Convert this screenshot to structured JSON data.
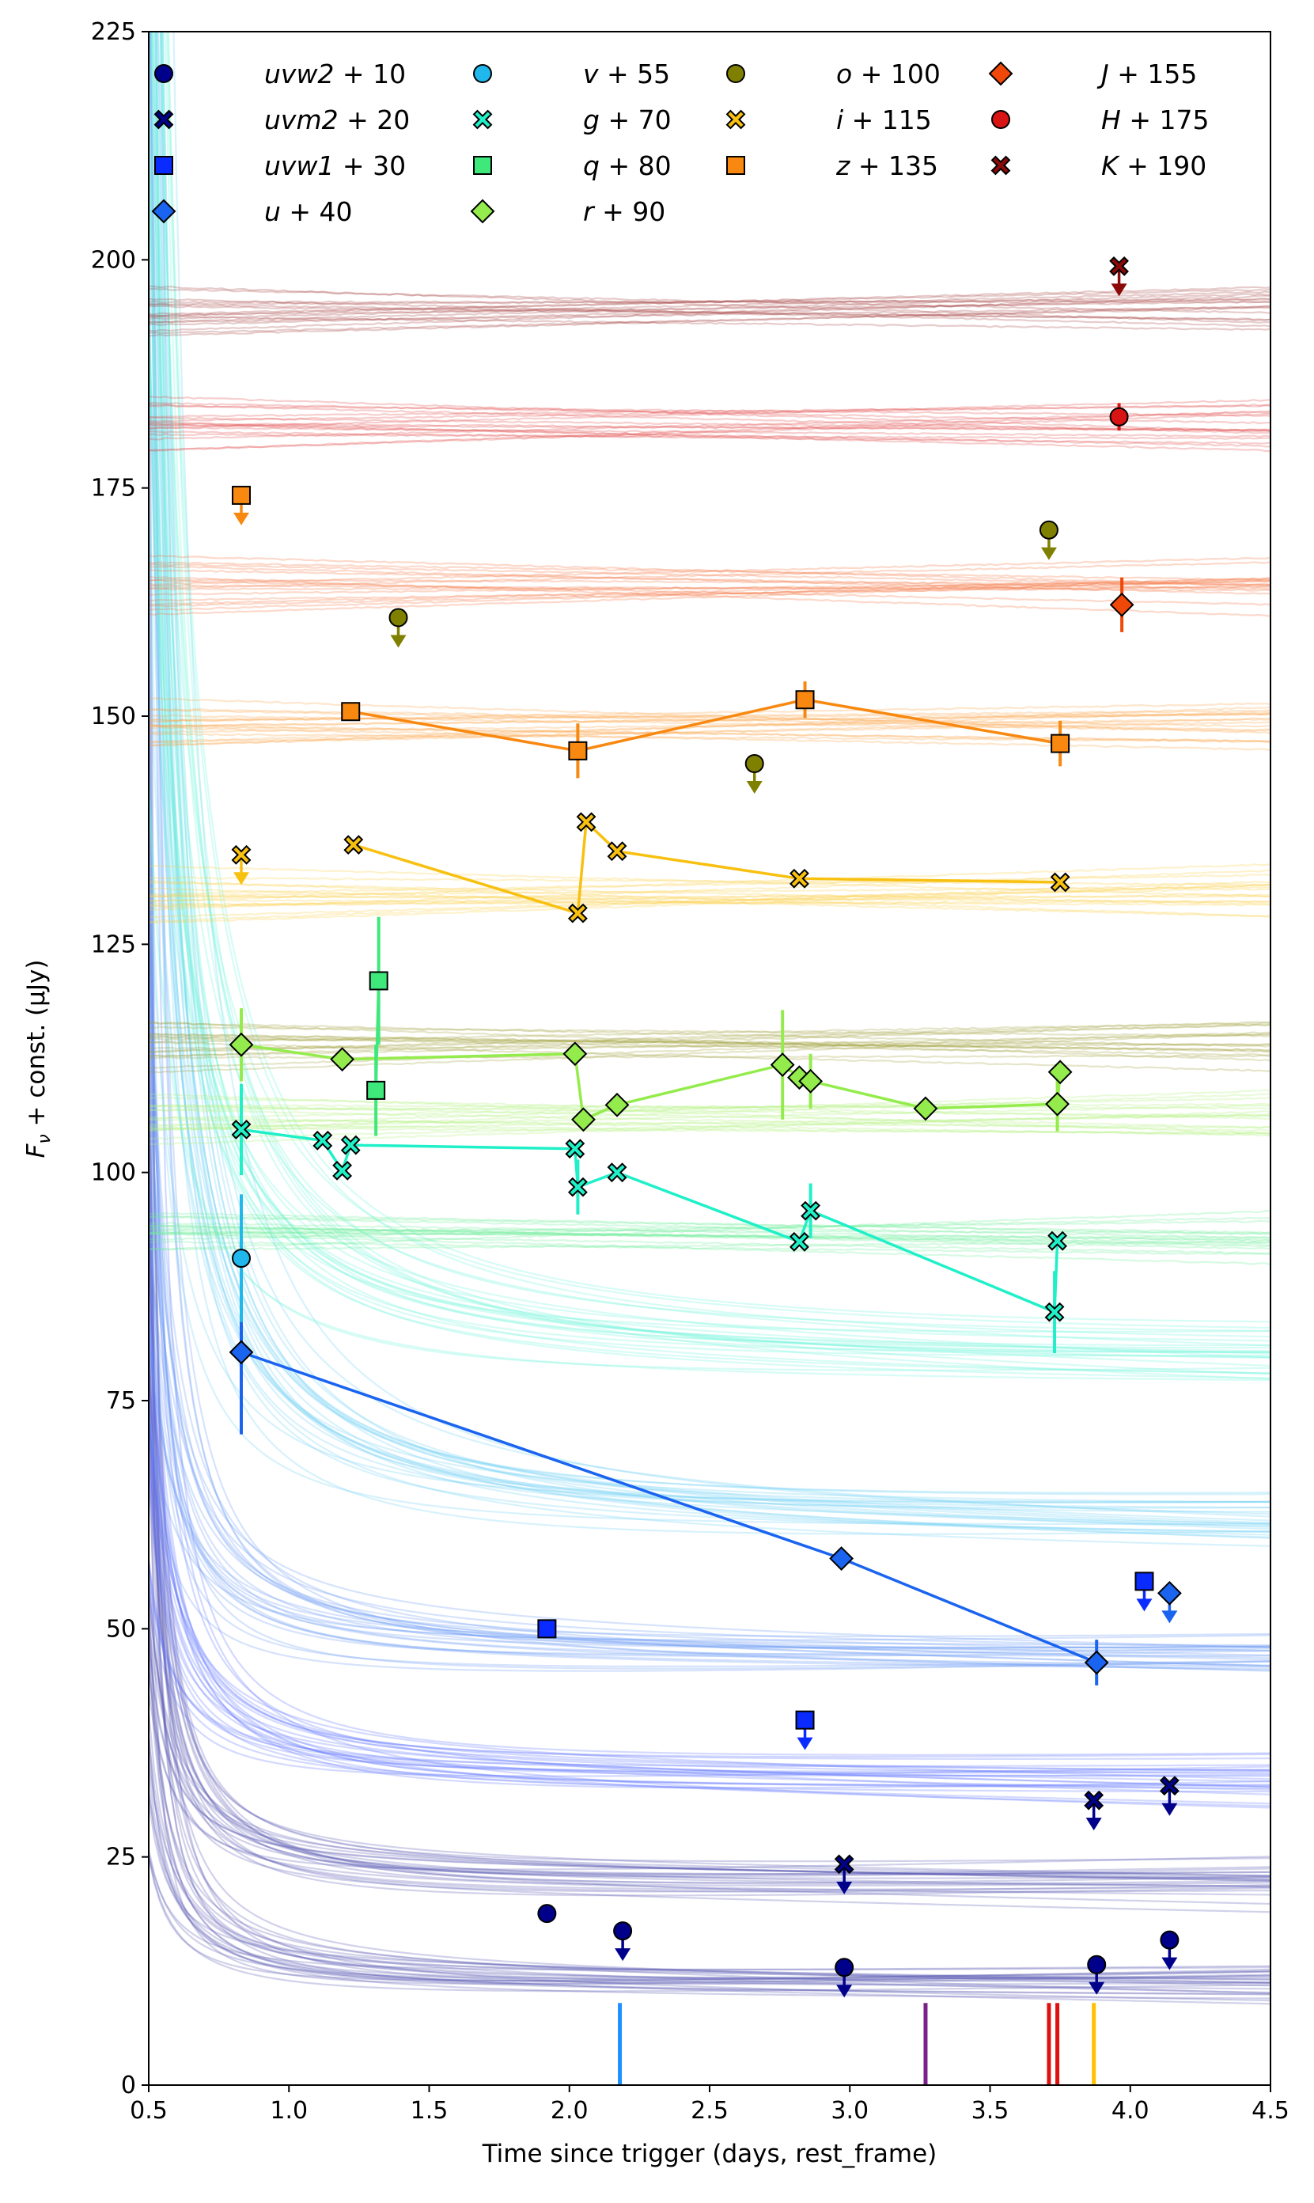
{
  "chart_data": {
    "type": "scatter",
    "title": "",
    "xlabel": "Time since trigger (days, rest_frame)",
    "ylabel_parts": [
      "F",
      "ν",
      " + const. (μJy)"
    ],
    "xlim": [
      0.5,
      4.5
    ],
    "ylim": [
      0,
      225
    ],
    "xticks": [
      0.5,
      1.0,
      1.5,
      2.0,
      2.5,
      3.0,
      3.5,
      4.0,
      4.5
    ],
    "xtick_labels": [
      "0.5",
      "1.0",
      "1.5",
      "2.0",
      "2.5",
      "3.0",
      "3.5",
      "4.0",
      "4.5"
    ],
    "yticks": [
      0,
      25,
      50,
      75,
      100,
      125,
      150,
      175,
      200,
      225
    ],
    "ytick_labels": [
      "0",
      "25",
      "50",
      "75",
      "100",
      "125",
      "150",
      "175",
      "200",
      "225"
    ],
    "grid": false,
    "legend_position": "top",
    "series": [
      {
        "band": "uvw2",
        "offset": "+ 10",
        "color": "#00008b",
        "marker": "circle",
        "line": false,
        "model": {
          "floor": 10.8,
          "amp": 2.3,
          "tau": 0.62
        },
        "points": [
          {
            "x": 1.92,
            "y": 18.8
          },
          {
            "x": 2.19,
            "y": 16.9,
            "upper": true
          },
          {
            "x": 2.98,
            "y": 12.9,
            "upper": true
          },
          {
            "x": 3.88,
            "y": 13.2,
            "upper": true
          },
          {
            "x": 4.14,
            "y": 15.9,
            "upper": true
          }
        ]
      },
      {
        "band": "uvm2",
        "offset": "+ 20",
        "color": "#00008b",
        "marker": "x",
        "line": false,
        "model": {
          "floor": 21.5,
          "amp": 3.1,
          "tau": 0.68
        },
        "points": [
          {
            "x": 2.98,
            "y": 24.2,
            "upper": true
          },
          {
            "x": 3.87,
            "y": 31.2,
            "upper": true
          },
          {
            "x": 4.14,
            "y": 32.8,
            "upper": true
          }
        ]
      },
      {
        "band": "uvw1",
        "offset": "+ 30",
        "color": "#0a2bff",
        "marker": "square",
        "line": false,
        "model": {
          "floor": 32.8,
          "amp": 3.3,
          "tau": 0.72
        },
        "points": [
          {
            "x": 1.92,
            "y": 50.0
          },
          {
            "x": 2.84,
            "y": 40.0,
            "upper": true
          },
          {
            "x": 4.05,
            "y": 55.2,
            "upper": true
          }
        ]
      },
      {
        "band": "u",
        "offset": "+ 40",
        "color": "#1a64f0",
        "marker": "diamond",
        "line": true,
        "model": {
          "floor": 46.5,
          "amp": 3.8,
          "tau": 0.8
        },
        "points": [
          {
            "x": 0.83,
            "y": 80.3,
            "err": 9.0
          },
          {
            "x": 2.97,
            "y": 57.7
          },
          {
            "x": 3.88,
            "y": 46.3,
            "err": 2.5
          },
          {
            "x": 4.14,
            "y": 53.9,
            "upper": true
          }
        ]
      },
      {
        "band": "v",
        "offset": "+ 55",
        "color": "#20b8ec",
        "marker": "circle",
        "line": false,
        "model": {
          "floor": 60.0,
          "amp": 6.0,
          "tau": 1.2
        },
        "points": [
          {
            "x": 0.83,
            "y": 90.6,
            "err": 7.0
          }
        ]
      },
      {
        "band": "g",
        "offset": "+ 70",
        "color": "#20f0c8",
        "marker": "x",
        "line": true,
        "model": {
          "floor": 78.0,
          "amp": 6.0,
          "tau": 1.5
        },
        "points": [
          {
            "x": 0.83,
            "y": 104.7,
            "err": 5.0
          },
          {
            "x": 1.12,
            "y": 103.5
          },
          {
            "x": 1.19,
            "y": 100.2
          },
          {
            "x": 1.22,
            "y": 103.0
          },
          {
            "x": 2.02,
            "y": 102.6
          },
          {
            "x": 2.03,
            "y": 98.4,
            "err": 3.0
          },
          {
            "x": 2.17,
            "y": 100.0
          },
          {
            "x": 2.82,
            "y": 92.4
          },
          {
            "x": 2.86,
            "y": 95.8,
            "err": 3.0
          },
          {
            "x": 3.73,
            "y": 84.7,
            "err": 4.5
          },
          {
            "x": 3.74,
            "y": 92.5
          }
        ]
      },
      {
        "band": "q",
        "offset": "+ 80",
        "color": "#3ee87a",
        "marker": "square",
        "line": true,
        "model": {
          "floor": 93.0,
          "amp": 0.0,
          "tau": 1.0
        },
        "points": [
          {
            "x": 1.31,
            "y": 109.0,
            "err": 5.0
          },
          {
            "x": 1.32,
            "y": 121.0,
            "err": 7.0
          }
        ]
      },
      {
        "band": "o",
        "offset": "+ 100",
        "color": "#808000",
        "marker": "circle",
        "line": false,
        "model": {
          "floor": 114.0,
          "amp": 0.0,
          "tau": 1.0
        },
        "points": [
          {
            "x": 1.39,
            "y": 160.8,
            "upper": true
          },
          {
            "x": 2.66,
            "y": 144.8,
            "upper": true
          },
          {
            "x": 3.71,
            "y": 170.4,
            "upper": true
          }
        ]
      },
      {
        "band": "r",
        "offset": "+ 90",
        "color": "#94ec4c",
        "marker": "diamond",
        "line": true,
        "model": {
          "floor": 106.0,
          "amp": 0.0,
          "tau": 1.0
        },
        "points": [
          {
            "x": 0.83,
            "y": 114.0,
            "err": 4.0
          },
          {
            "x": 1.19,
            "y": 112.4
          },
          {
            "x": 2.02,
            "y": 113.0
          },
          {
            "x": 2.05,
            "y": 105.8
          },
          {
            "x": 2.17,
            "y": 107.4
          },
          {
            "x": 2.76,
            "y": 111.8,
            "err": 6.0
          },
          {
            "x": 2.82,
            "y": 110.4
          },
          {
            "x": 2.86,
            "y": 110.0,
            "err": 3.0
          },
          {
            "x": 3.27,
            "y": 107.0
          },
          {
            "x": 3.74,
            "y": 107.5,
            "err": 3.0
          },
          {
            "x": 3.75,
            "y": 111.0
          }
        ]
      },
      {
        "band": "i",
        "offset": "+ 115",
        "color": "#f8c010",
        "marker": "x",
        "line": true,
        "model": {
          "floor": 130.5,
          "amp": 0.0,
          "tau": 1.0
        },
        "points": [
          {
            "x": 0.83,
            "y": 134.8,
            "upper": true
          },
          {
            "x": 1.23,
            "y": 135.9
          },
          {
            "x": 2.03,
            "y": 128.4
          },
          {
            "x": 2.06,
            "y": 138.4
          },
          {
            "x": 2.17,
            "y": 135.2
          },
          {
            "x": 2.82,
            "y": 132.2
          },
          {
            "x": 3.75,
            "y": 131.8
          }
        ]
      },
      {
        "band": "z",
        "offset": "+ 135",
        "color": "#f88810",
        "marker": "square",
        "line": true,
        "model": {
          "floor": 149.0,
          "amp": 0.0,
          "tau": 1.0
        },
        "points": [
          {
            "x": 0.83,
            "y": 174.2,
            "upper": true
          },
          {
            "x": 1.22,
            "y": 150.5
          },
          {
            "x": 2.03,
            "y": 146.2,
            "err": 3.0
          },
          {
            "x": 2.84,
            "y": 151.8,
            "err": 2.0
          },
          {
            "x": 3.75,
            "y": 147.0,
            "err": 2.5
          }
        ]
      },
      {
        "band": "J",
        "offset": "+ 155",
        "color": "#f04808",
        "marker": "diamond",
        "line": false,
        "model": {
          "floor": 164.5,
          "amp": 0.0,
          "tau": 1.0
        },
        "points": [
          {
            "x": 3.97,
            "y": 162.2,
            "err": 3.0
          }
        ]
      },
      {
        "band": "H",
        "offset": "+ 175",
        "color": "#d81414",
        "marker": "circle",
        "line": false,
        "model": {
          "floor": 182.0,
          "amp": 0.0,
          "tau": 1.0
        },
        "points": [
          {
            "x": 3.96,
            "y": 182.8,
            "err": 1.5
          }
        ]
      },
      {
        "band": "K",
        "offset": "+ 190",
        "color": "#8b0a0a",
        "marker": "x",
        "line": false,
        "model": {
          "floor": 194.5,
          "amp": 0.0,
          "tau": 1.0
        },
        "points": [
          {
            "x": 3.96,
            "y": 199.3,
            "upper": true
          }
        ]
      }
    ],
    "legend_order": [
      "uvw2",
      "uvm2",
      "uvw1",
      "u",
      "v",
      "g",
      "q",
      "r",
      "o",
      "i",
      "z",
      "J",
      "H",
      "K"
    ],
    "epoch_markers": [
      {
        "x": 2.18,
        "color": "#1e90ff"
      },
      {
        "x": 3.27,
        "color": "#7b1f8a"
      },
      {
        "x": 3.71,
        "color": "#e01010"
      },
      {
        "x": 3.74,
        "color": "#e01010"
      },
      {
        "x": 3.87,
        "color": "#ffc200"
      }
    ]
  }
}
